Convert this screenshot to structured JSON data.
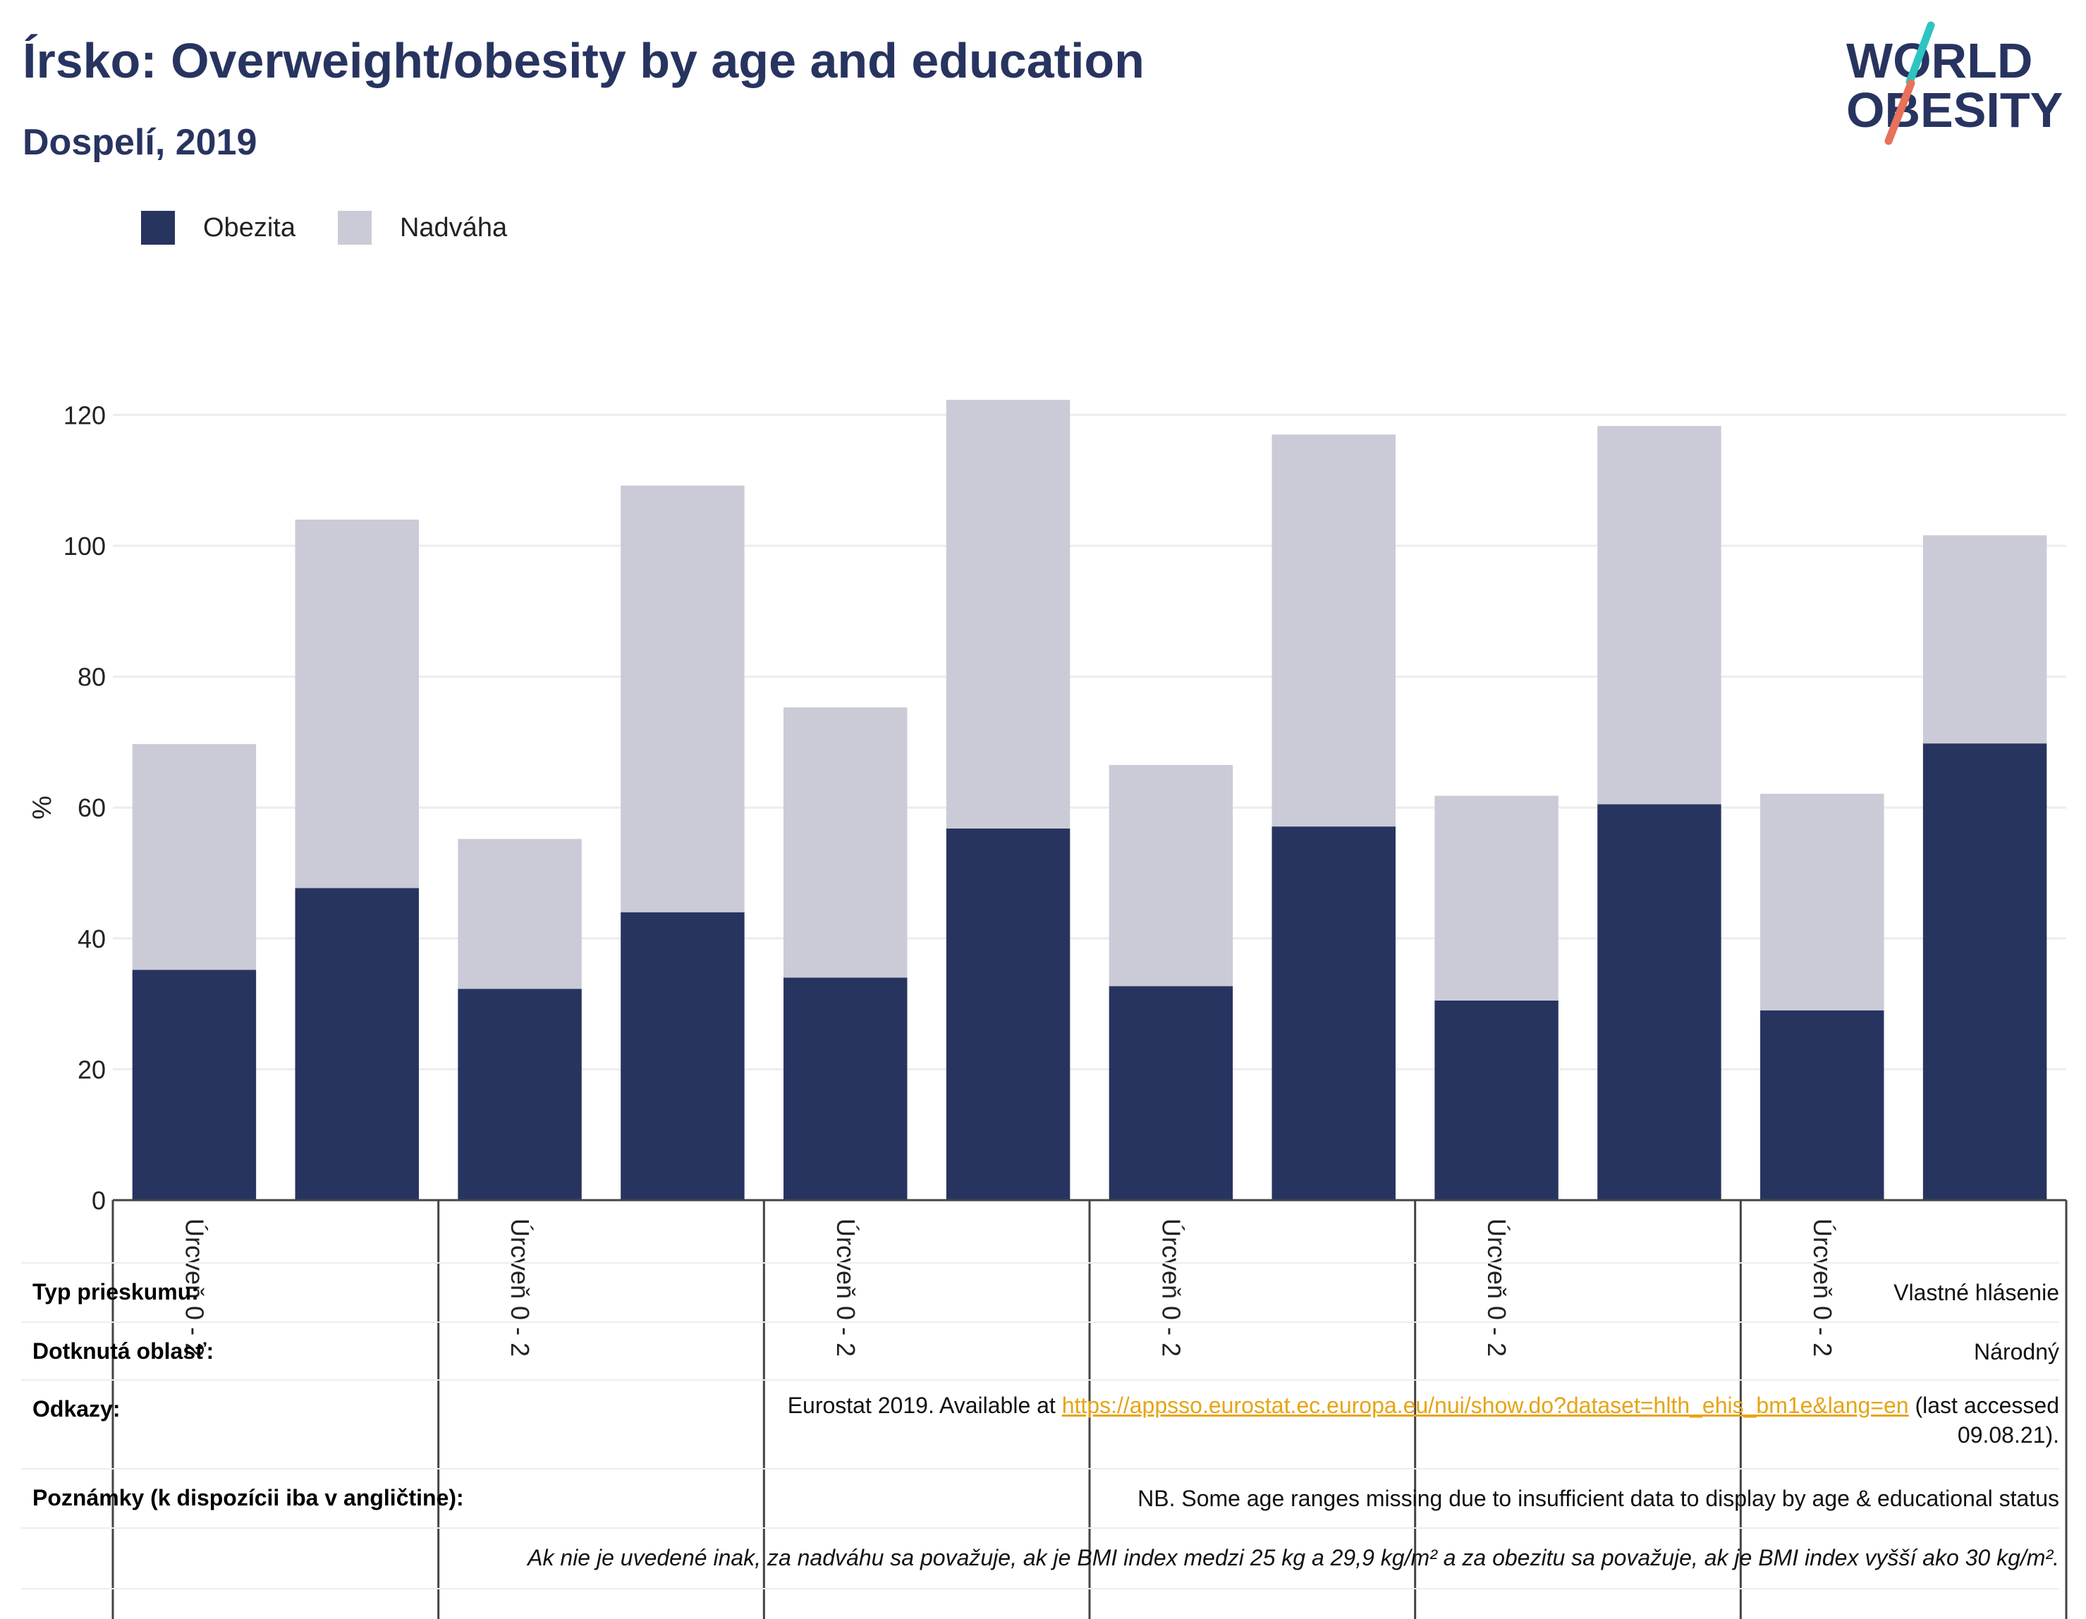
{
  "header": {
    "title": "Írsko: Overweight/obesity by age and education",
    "subtitle": "Dospelí, 2019"
  },
  "logo": {
    "line1": "WORLD",
    "line2": "OBESITY",
    "colors": {
      "text": "#283460",
      "teal": "#2ec4c2",
      "orange": "#e7715a"
    }
  },
  "chart_data": {
    "type": "bar",
    "stacked": true,
    "categories": [
      "Úrcveň 0 - 2",
      "",
      "Úrcveň 0 - 2",
      "",
      "Úrcveň 0 - 2",
      "",
      "Úrcveň 0 - 2",
      "",
      "Úrcveň 0 - 2",
      "",
      "Úrcveň 0 - 2",
      ""
    ],
    "series": [
      {
        "name": "Obezita",
        "color": "#283460",
        "values": [
          35.2,
          47.7,
          32.3,
          44.0,
          34.0,
          56.8,
          32.7,
          57.1,
          30.5,
          60.5,
          29.0,
          69.8
        ]
      },
      {
        "name": "Nadváha",
        "color": "#cacbd7",
        "values": [
          34.5,
          56.3,
          22.9,
          65.2,
          41.3,
          65.5,
          33.8,
          59.9,
          31.3,
          57.8,
          33.1,
          31.8
        ]
      }
    ],
    "ylabel": "%",
    "ylim": [
      0,
      122
    ],
    "yticks": [
      0,
      20,
      40,
      60,
      80,
      100,
      120
    ],
    "grid": true,
    "legend_placement": "top-left"
  },
  "info": {
    "survey_type_label": "Typ prieskumu:",
    "survey_type_value": "Vlastné hlásenie",
    "area_label": "Dotknutá oblasť:",
    "area_value": "Národný",
    "refs_label": "Odkazy:",
    "refs_prefix": "Eurostat 2019. Available at",
    "refs_link": "https://appsso.eurostat.ec.europa.eu/nui/show.do?dataset=hlth_ehis_bm1e&lang=en",
    "refs_suffix": "(last accessed",
    "refs_date": "09.08.21).",
    "notes_label": "Poznámky (k dispozícii iba v angličtine):",
    "notes_value": "NB. Some age ranges missing due to insufficient data to display by age & educational status",
    "definition": "Ak nie je uvedené inak, za nadváhu sa považuje, ak je BMI index medzi 25 kg a 29,9 kg/m² a za obezitu sa považuje, ak je BMI index vyšší ako 30 kg/m²."
  }
}
